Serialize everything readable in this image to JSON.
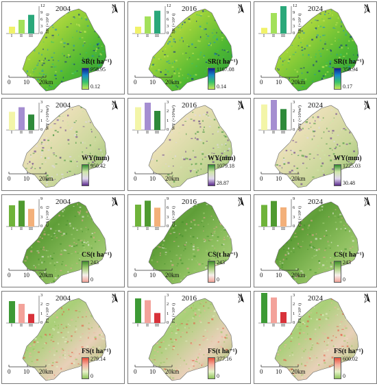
{
  "rows": [
    {
      "metric": "SR",
      "legend_title": "SR(t ha⁻¹)",
      "y_axis_label": "SR (×10³ t)",
      "y_ticks": [
        "0",
        "3",
        "6",
        "9",
        "12"
      ],
      "y_max": 12,
      "map_gradient": [
        "#d8e86a",
        "#9fd33a",
        "#4fb832",
        "#2a9a3b"
      ],
      "ramp": [
        "#0a1f8f",
        "#1a8ac8",
        "#39c26a",
        "#c7e85a"
      ],
      "bar_colors": [
        "#f0f26a",
        "#a3e05a",
        "#2aa87a"
      ],
      "panels": [
        {
          "year": "2004",
          "max": "958.95",
          "min": "0.12",
          "bars": [
            3,
            6,
            8.2
          ]
        },
        {
          "year": "2016",
          "max": "1167.08",
          "min": "0.14",
          "bars": [
            3,
            7.5,
            10
          ]
        },
        {
          "year": "2024",
          "max": "358.94",
          "min": "0.17",
          "bars": [
            2.5,
            9,
            12
          ]
        }
      ]
    },
    {
      "metric": "WY",
      "legend_title": "WY(mm)",
      "y_axis_label": "WY (×10⁸m³)",
      "y_ticks": [
        "0",
        "1",
        "2",
        "3"
      ],
      "y_max": 3,
      "map_gradient": [
        "#f3ecd0",
        "#e8dfb5",
        "#c9d79a",
        "#8fbf6a"
      ],
      "ramp": [
        "#2f8a2f",
        "#cfe6a8",
        "#e0d8f0",
        "#5a2a8a"
      ],
      "bar_colors": [
        "#f3f5a8",
        "#a58ed1",
        "#2e8a3a"
      ],
      "panels": [
        {
          "year": "2004",
          "max": "950.42",
          "min": "",
          "bars": [
            2,
            2.5,
            1.7
          ]
        },
        {
          "year": "2016",
          "max": "1079.18",
          "min": "28.87",
          "bars": [
            2.5,
            3,
            2.1
          ]
        },
        {
          "year": "2024",
          "max": "1225.03",
          "min": "30.48",
          "bars": [
            2.8,
            3.3,
            2.3
          ]
        }
      ]
    },
    {
      "metric": "CS",
      "legend_title": "CS(t ha⁻¹)",
      "y_axis_label": "CS (×10⁶ t)",
      "y_ticks": [
        "0",
        "3",
        "6",
        "9"
      ],
      "y_max": 9,
      "map_gradient": [
        "#7fb54d",
        "#5f9e38",
        "#8fc060",
        "#b9d58e"
      ],
      "ramp": [
        "#3f8c2a",
        "#a6cf78",
        "#f5f0ec",
        "#f2a49a"
      ],
      "bar_colors": [
        "#6fb33a",
        "#4f9a30",
        "#f3b07a"
      ],
      "panels": [
        {
          "year": "2004",
          "max": "243",
          "min": "0",
          "bars": [
            7,
            8.5,
            5.8
          ]
        },
        {
          "year": "2016",
          "max": "243",
          "min": "0",
          "bars": [
            7.2,
            8.5,
            6.2
          ]
        },
        {
          "year": "2024",
          "max": "243",
          "min": "0",
          "bars": [
            7.1,
            8.4,
            6.3
          ]
        }
      ]
    },
    {
      "metric": "FS",
      "legend_title": "FS(t ha⁻¹)",
      "y_axis_label": "FS (×10⁵ t)",
      "y_ticks": [
        "0",
        "1",
        "2",
        "3"
      ],
      "y_max": 3,
      "map_gradient": [
        "#c9e09a",
        "#a9cf78",
        "#e8d0b8",
        "#9fc46a"
      ],
      "ramp": [
        "#e8503a",
        "#f4b0a0",
        "#e6f2c8",
        "#8fc45a"
      ],
      "bar_colors": [
        "#3d9a35",
        "#f3a29a",
        "#d8323a"
      ],
      "panels": [
        {
          "year": "2004",
          "max": "279.14",
          "min": "0",
          "bars": [
            2.4,
            2.1,
            1.0
          ]
        },
        {
          "year": "2016",
          "max": "377.16",
          "min": "0",
          "bars": [
            2.7,
            2.5,
            1.1
          ]
        },
        {
          "year": "2024",
          "max": "600.02",
          "min": "0",
          "bars": [
            3.3,
            2.8,
            1.2
          ]
        }
      ]
    }
  ],
  "categories": [
    "I",
    "II",
    "III"
  ],
  "north_label": "N",
  "scale": {
    "labels": [
      "0",
      "10",
      "20km"
    ]
  }
}
